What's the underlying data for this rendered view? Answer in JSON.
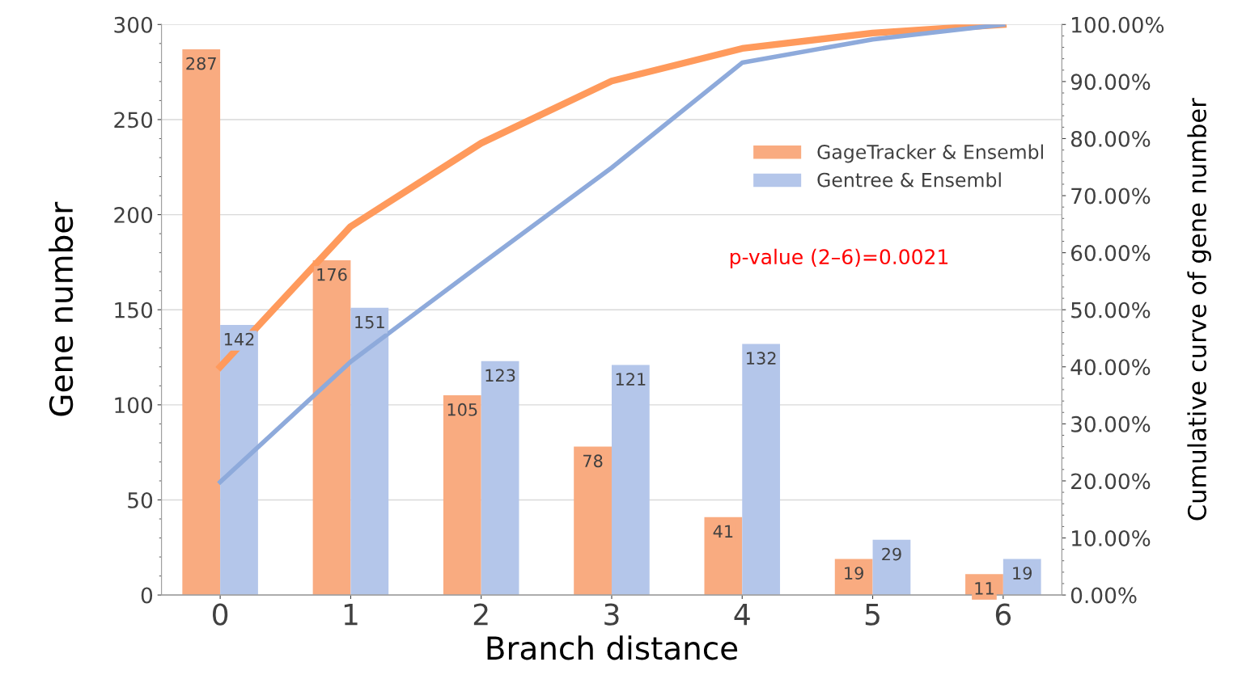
{
  "chart_data": {
    "type": "bar",
    "xlabel": "Branch distance",
    "ylabel": "Gene number",
    "y2label": "Cumulative curve of gene number",
    "categories": [
      "0",
      "1",
      "2",
      "3",
      "4",
      "5",
      "6"
    ],
    "series": [
      {
        "name": "GageTracker & Ensembl",
        "color": "#f9ab80",
        "values": [
          287,
          176,
          105,
          78,
          41,
          19,
          11
        ],
        "value_labels": [
          "287",
          "176",
          "105",
          "78",
          "41",
          "19",
          "11"
        ]
      },
      {
        "name": "Gentree & Ensembl",
        "color": "#b4c6ea",
        "values": [
          142,
          151,
          123,
          121,
          132,
          29,
          19
        ],
        "value_labels": [
          "142",
          "151",
          "123",
          "121",
          "132",
          "29",
          "19"
        ]
      },
      {
        "type": "line",
        "axis": "y2",
        "color": "#ff9a5c",
        "values": [
          40.0,
          64.6,
          79.2,
          90.1,
          95.8,
          98.5,
          100
        ]
      },
      {
        "type": "line",
        "axis": "y2",
        "color": "#8eaadb",
        "values": [
          19.8,
          40.9,
          58.0,
          74.9,
          93.3,
          97.4,
          100
        ]
      }
    ],
    "ylim": [
      0,
      300
    ],
    "yticks": [
      0,
      50,
      100,
      150,
      200,
      250,
      300
    ],
    "y2lim": [
      0,
      100
    ],
    "y2ticks": [
      {
        "value": 0,
        "label": "0.00%"
      },
      {
        "value": 10,
        "label": "10.00%"
      },
      {
        "value": 20,
        "label": "20.00%"
      },
      {
        "value": 30,
        "label": "30.00%"
      },
      {
        "value": 40,
        "label": "40.00%"
      },
      {
        "value": 50,
        "label": "50.00%"
      },
      {
        "value": 60,
        "label": "60.00%"
      },
      {
        "value": 70,
        "label": "70.00%"
      },
      {
        "value": 80,
        "label": "80.00%"
      },
      {
        "value": 90,
        "label": "90.00%"
      },
      {
        "value": 100,
        "label": "100.00%"
      }
    ],
    "grid": "y",
    "legend": "top right",
    "marker": "none",
    "line_style": "solid",
    "annotations": [
      "p-value (2–6)=0.0021"
    ]
  }
}
